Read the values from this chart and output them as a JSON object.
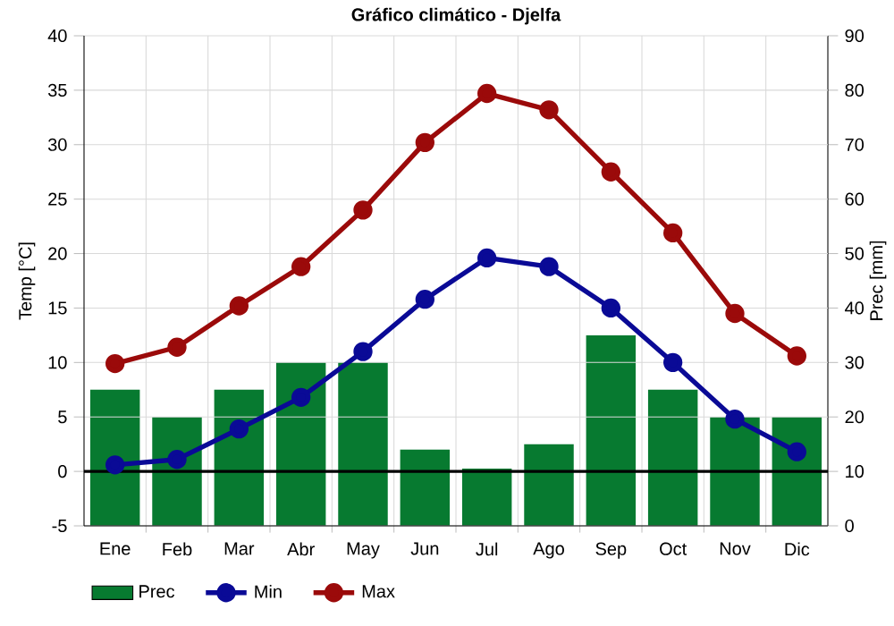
{
  "chart_data": {
    "type": "line",
    "title": "Gráfico climático - Djelfa",
    "xlabel": null,
    "ylabel": "Temp [°C]",
    "y2label": "Prec [mm]",
    "categories": [
      "Ene",
      "Feb",
      "Mar",
      "Abr",
      "May",
      "Jun",
      "Jul",
      "Ago",
      "Sep",
      "Oct",
      "Nov",
      "Dic"
    ],
    "series": [
      {
        "name": "Prec",
        "type": "bar",
        "axis": "y2",
        "color": "#077a30",
        "values": [
          25,
          20,
          25,
          30,
          30,
          14,
          10.5,
          15,
          35,
          25,
          20,
          20
        ]
      },
      {
        "name": "Min",
        "color": "#0a0a96",
        "values": [
          0.6,
          1.1,
          3.9,
          6.8,
          11.0,
          15.8,
          19.6,
          18.8,
          15.0,
          10.0,
          4.8,
          1.8
        ]
      },
      {
        "name": "Max",
        "color": "#9b0a0a",
        "values": [
          9.9,
          11.4,
          15.2,
          18.8,
          24.0,
          30.2,
          34.7,
          33.2,
          27.5,
          21.9,
          14.5,
          10.6
        ]
      }
    ],
    "ylim": [
      -5,
      40
    ],
    "yticks": [
      -5,
      0,
      5,
      10,
      15,
      20,
      25,
      30,
      35,
      40
    ],
    "y2lim": [
      0,
      90
    ],
    "y2ticks": [
      0,
      10,
      20,
      30,
      40,
      50,
      60,
      70,
      80,
      90
    ],
    "ref_lines": [
      {
        "axis": "y",
        "value": 0,
        "color": "#000000"
      }
    ],
    "grid": true,
    "legend": "bottom",
    "marker": "circle",
    "line_style": "solid"
  }
}
